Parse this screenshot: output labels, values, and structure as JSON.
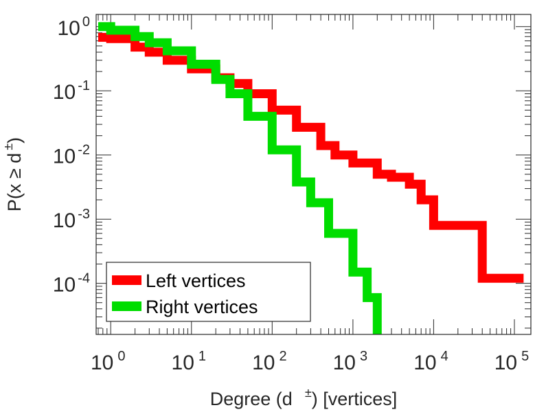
{
  "chart_data": {
    "type": "line",
    "title": "",
    "xlabel": {
      "prefix": "Degree (d",
      "superscript": "±",
      "suffix": ") [vertices]"
    },
    "ylabel": {
      "prefix": "P(x ≥ d",
      "superscript": "±",
      "suffix": ")"
    },
    "xscale": "log",
    "yscale": "log",
    "xlim": [
      0.66,
      160000
    ],
    "ylim": [
      1.6e-05,
      1.55
    ],
    "grid": false,
    "legend_position": "bottom-left",
    "x_ticks": [
      {
        "value": 1,
        "base": "10",
        "exp": "0"
      },
      {
        "value": 10,
        "base": "10",
        "exp": "1"
      },
      {
        "value": 100,
        "base": "10",
        "exp": "2"
      },
      {
        "value": 1000,
        "base": "10",
        "exp": "3"
      },
      {
        "value": 10000,
        "base": "10",
        "exp": "4"
      },
      {
        "value": 100000,
        "base": "10",
        "exp": "5"
      }
    ],
    "y_ticks": [
      {
        "value": 1,
        "base": "10",
        "exp": "0"
      },
      {
        "value": 0.1,
        "base": "10",
        "exp": "-1"
      },
      {
        "value": 0.01,
        "base": "10",
        "exp": "-2"
      },
      {
        "value": 0.001,
        "base": "10",
        "exp": "-3"
      },
      {
        "value": 0.0001,
        "base": "10",
        "exp": "-4"
      }
    ],
    "series": [
      {
        "name": "Left vertices",
        "color": "#ff0000",
        "x": [
          0.7,
          1,
          2,
          3,
          5,
          10,
          20,
          30,
          50,
          100,
          200,
          400,
          600,
          1000,
          2000,
          3000,
          5000,
          7000,
          10000,
          20000,
          40000,
          100000,
          130000
        ],
        "y": [
          0.68,
          0.65,
          0.48,
          0.4,
          0.3,
          0.22,
          0.16,
          0.13,
          0.09,
          0.05,
          0.027,
          0.014,
          0.01,
          0.0075,
          0.005,
          0.0045,
          0.0035,
          0.002,
          0.0008,
          0.0008,
          0.00012,
          0.00012,
          0.00012
        ]
      },
      {
        "name": "Right vertices",
        "color": "#00dd00",
        "x": [
          0.7,
          1,
          2,
          3,
          5,
          10,
          20,
          30,
          50,
          100,
          200,
          300,
          500,
          1000,
          1500,
          2000
        ],
        "y": [
          1.0,
          0.88,
          0.7,
          0.56,
          0.42,
          0.26,
          0.15,
          0.09,
          0.04,
          0.012,
          0.0038,
          0.0018,
          0.0006,
          0.00015,
          6e-05,
          1.6e-05
        ]
      }
    ]
  }
}
